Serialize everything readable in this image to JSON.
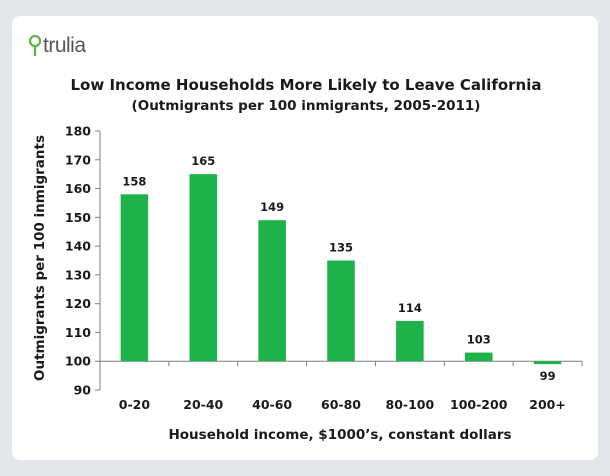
{
  "brand": {
    "name": "trulia",
    "accent": "#5cb546"
  },
  "chart_data": {
    "type": "bar",
    "title": "Low Income Households More Likely to Leave California",
    "subtitle": "(Outmigrants per 100 inmigrants, 2005-2011)",
    "xlabel": "Household income, $1000’s, constant dollars",
    "ylabel": "Outmigrants per 100 inmigrants",
    "categories": [
      "0-20",
      "20-40",
      "40-60",
      "60-80",
      "80-100",
      "100-200",
      "200+"
    ],
    "values": [
      158,
      165,
      149,
      135,
      114,
      103,
      99
    ],
    "baseline": 100,
    "ylim": [
      90,
      180
    ],
    "yticks": [
      90,
      100,
      110,
      120,
      130,
      140,
      150,
      160,
      170,
      180
    ],
    "grid": false,
    "bar_color": "#1db34a"
  }
}
